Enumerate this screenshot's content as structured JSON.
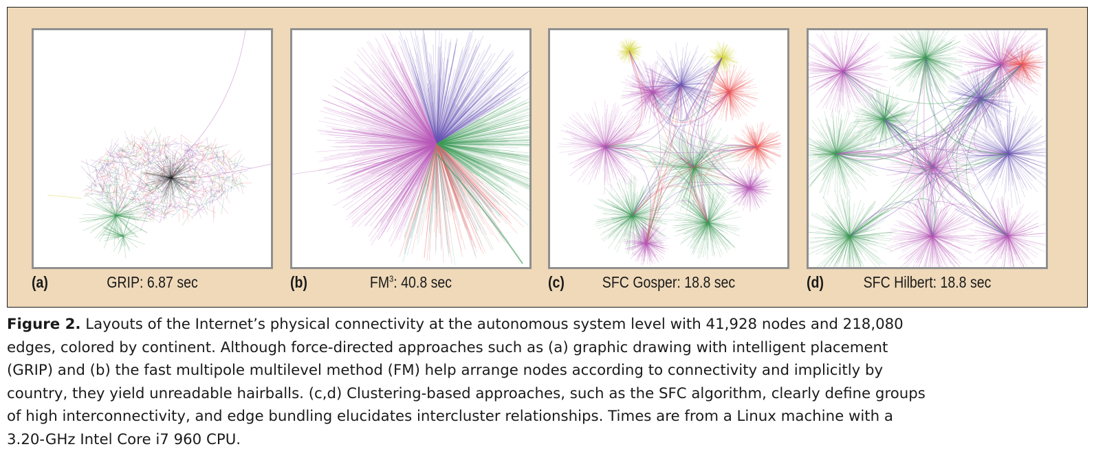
{
  "panels": [
    {
      "letter": "(a)",
      "time_prefix": "GRIP: ",
      "time_sup": "",
      "time_value": "6.87 sec"
    },
    {
      "letter": "(b)",
      "time_prefix": "FM",
      "time_sup": "3",
      "time_value": ": 40.8 sec"
    },
    {
      "letter": "(c)",
      "time_prefix": "SFC Gosper: ",
      "time_sup": "",
      "time_value": "18.8 sec"
    },
    {
      "letter": "(d)",
      "time_prefix": "SFC Hilbert: ",
      "time_sup": "",
      "time_value": "18.8 sec"
    }
  ],
  "caption": {
    "label": "Figure 2.",
    "lines": [
      " Layouts of the Internet’s physical connectivity at the autonomous system level with 41,928 nodes and 218,080",
      "edges, colored by continent. Although force-directed approaches such as (a) graphic drawing with intelligent placement",
      "(GRIP) and (b) the fast multipole multilevel method (FM) help arrange nodes according to connectivity and implicitly by",
      "country, they yield unreadable hairballs. (c,d) Clustering-based approaches, such as the SFC algorithm, clearly define groups",
      "of high interconnectivity, and edge bundling elucidates intercluster relationships. Times are from a Linux machine with a",
      "3.20-GHz Intel Core i7 960 CPU."
    ]
  },
  "colors": {
    "background": "#efd9b9",
    "panel_border": "#8f8f8f",
    "continents": [
      "#6a55b5",
      "#b85bb8",
      "#3f9a5a",
      "#ee5a5a",
      "#d6d64a",
      "#4aa8a8"
    ]
  }
}
